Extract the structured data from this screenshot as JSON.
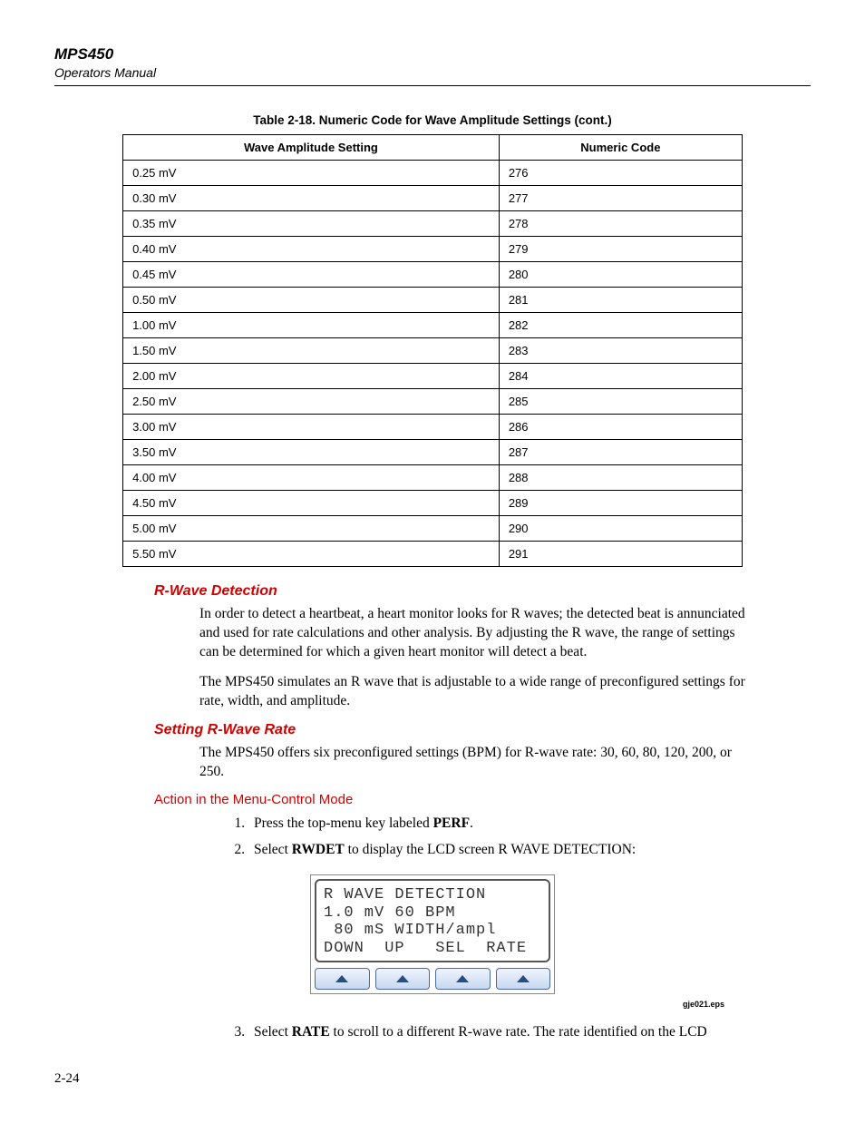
{
  "header": {
    "title": "MPS450",
    "subtitle": "Operators Manual"
  },
  "table": {
    "caption": "Table 2-18. Numeric Code for Wave Amplitude Settings (cont.)",
    "columns": [
      "Wave Amplitude Setting",
      "Numeric Code"
    ],
    "rows": [
      [
        "0.25 mV",
        "276"
      ],
      [
        "0.30 mV",
        "277"
      ],
      [
        "0.35 mV",
        "278"
      ],
      [
        "0.40 mV",
        "279"
      ],
      [
        "0.45 mV",
        "280"
      ],
      [
        "0.50 mV",
        "281"
      ],
      [
        "1.00 mV",
        "282"
      ],
      [
        "1.50 mV",
        "283"
      ],
      [
        "2.00 mV",
        "284"
      ],
      [
        "2.50 mV",
        "285"
      ],
      [
        "3.00 mV",
        "286"
      ],
      [
        "3.50 mV",
        "287"
      ],
      [
        "4.00 mV",
        "288"
      ],
      [
        "4.50 mV",
        "289"
      ],
      [
        "5.00 mV",
        "290"
      ],
      [
        "5.50 mV",
        "291"
      ]
    ],
    "border_color": "#000000",
    "font_size_pt": 10,
    "header_bg": "#ffffff"
  },
  "sections": {
    "rwave_det": {
      "heading": "R-Wave Detection",
      "para1": "In order to detect a heartbeat, a heart monitor looks for R waves; the detected beat is annunciated and used for rate calculations and other analysis. By adjusting the R wave, the range of settings can be determined for which a given heart monitor will detect a beat.",
      "para2": "The MPS450 simulates an R wave that is adjustable to a wide range of preconfigured settings for rate, width, and amplitude."
    },
    "rwave_rate": {
      "heading": "Setting R-Wave Rate",
      "para": "The MPS450 offers six preconfigured settings (BPM) for R-wave rate: 30, 60, 80, 120, 200, or 250."
    },
    "action": {
      "heading": "Action in the Menu-Control Mode",
      "step1_pre": "Press the top-menu key labeled ",
      "step1_bold": "PERF",
      "step1_post": ".",
      "step2_pre": "Select ",
      "step2_bold": "RWDET",
      "step2_post": " to display the LCD screen R WAVE DETECTION:",
      "step3_pre": "Select ",
      "step3_bold": "RATE",
      "step3_post": " to scroll to a different R-wave rate. The rate identified on the LCD"
    }
  },
  "lcd": {
    "line1": "R WAVE DETECTION",
    "line2": "1.0 mV 60 BPM",
    "line3": " 80 mS WIDTH/ampl",
    "line4": "DOWN  UP   SEL  RATE",
    "keys": 4,
    "arrow_color": "#2a4d80",
    "key_border": "#4a6aa0"
  },
  "eps_label": "gje021.eps",
  "page_number": "2-24",
  "colors": {
    "heading_red": "#d40000",
    "text": "#000000",
    "background": "#ffffff"
  }
}
